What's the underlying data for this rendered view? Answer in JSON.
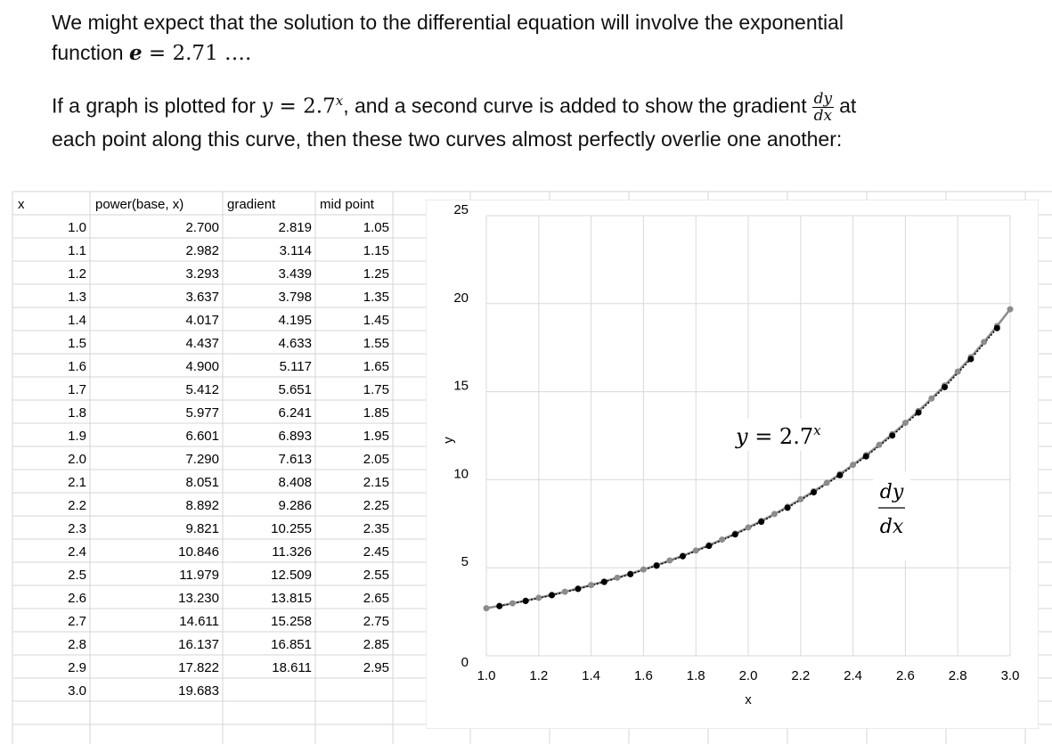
{
  "intro": {
    "line1": "We might expect that the solution to the differential equation will involve the exponential",
    "line2_prefix": "function ",
    "line2_e": "e",
    "line2_eq": " = 2.71 ….",
    "para2_a": "If a graph is plotted for ",
    "para2_y": "y",
    "para2_eq": " = 2.7",
    "para2_x": "x",
    "para2_b": ", and a second curve is added to show the gradient",
    "para2_frac_num": "dy",
    "para2_frac_den": "dx",
    "para2_c": "at",
    "para2_line2": "each point along this curve,  then these two curves almost perfectly overlie one another:"
  },
  "sheet": {
    "headers": [
      "x",
      "power(base, x)",
      "gradient",
      "mid point"
    ],
    "rows": [
      [
        "1.0",
        "2.700",
        "2.819",
        "1.05"
      ],
      [
        "1.1",
        "2.982",
        "3.114",
        "1.15"
      ],
      [
        "1.2",
        "3.293",
        "3.439",
        "1.25"
      ],
      [
        "1.3",
        "3.637",
        "3.798",
        "1.35"
      ],
      [
        "1.4",
        "4.017",
        "4.195",
        "1.45"
      ],
      [
        "1.5",
        "4.437",
        "4.633",
        "1.55"
      ],
      [
        "1.6",
        "4.900",
        "5.117",
        "1.65"
      ],
      [
        "1.7",
        "5.412",
        "5.651",
        "1.75"
      ],
      [
        "1.8",
        "5.977",
        "6.241",
        "1.85"
      ],
      [
        "1.9",
        "6.601",
        "6.893",
        "1.95"
      ],
      [
        "2.0",
        "7.290",
        "7.613",
        "2.05"
      ],
      [
        "2.1",
        "8.051",
        "8.408",
        "2.15"
      ],
      [
        "2.2",
        "8.892",
        "9.286",
        "2.25"
      ],
      [
        "2.3",
        "9.821",
        "10.255",
        "2.35"
      ],
      [
        "2.4",
        "10.846",
        "11.326",
        "2.45"
      ],
      [
        "2.5",
        "11.979",
        "12.509",
        "2.55"
      ],
      [
        "2.6",
        "13.230",
        "13.815",
        "2.65"
      ],
      [
        "2.7",
        "14.611",
        "15.258",
        "2.75"
      ],
      [
        "2.8",
        "16.137",
        "16.851",
        "2.85"
      ],
      [
        "2.9",
        "17.822",
        "18.611",
        "2.95"
      ],
      [
        "3.0",
        "19.683",
        "",
        ""
      ]
    ]
  },
  "chart_data": {
    "type": "scatter",
    "xlabel": "x",
    "ylabel": "y",
    "xlim": [
      1.0,
      3.0
    ],
    "ylim": [
      0,
      25
    ],
    "x_ticks": [
      "1.0",
      "1.2",
      "1.4",
      "1.6",
      "1.8",
      "2.0",
      "2.2",
      "2.4",
      "2.6",
      "2.8",
      "3.0"
    ],
    "y_ticks": [
      "0",
      "5",
      "10",
      "15",
      "20",
      "25"
    ],
    "grid": true,
    "series": [
      {
        "name": "y = 2.7^x",
        "color": "#8c8c8c",
        "x": [
          1.0,
          1.05,
          1.1,
          1.15,
          1.2,
          1.25,
          1.3,
          1.35,
          1.4,
          1.45,
          1.5,
          1.55,
          1.6,
          1.65,
          1.7,
          1.75,
          1.8,
          1.85,
          1.9,
          1.95,
          2.0,
          2.05,
          2.1,
          2.15,
          2.2,
          2.25,
          2.3,
          2.35,
          2.4,
          2.45,
          2.5,
          2.55,
          2.6,
          2.65,
          2.7,
          2.75,
          2.8,
          2.85,
          2.9,
          2.95,
          3.0
        ],
        "y": [
          2.7,
          2.838,
          2.982,
          3.134,
          3.293,
          3.461,
          3.637,
          3.822,
          4.017,
          4.221,
          4.437,
          4.662,
          4.9,
          5.149,
          5.412,
          5.687,
          5.977,
          6.281,
          6.601,
          6.937,
          7.29,
          7.661,
          8.051,
          8.461,
          8.892,
          9.344,
          9.821,
          10.32,
          10.846,
          11.398,
          11.979,
          12.588,
          13.23,
          13.903,
          14.611,
          15.355,
          16.137,
          16.958,
          17.822,
          18.729,
          19.683
        ]
      },
      {
        "name": "dy/dx",
        "color": "#000000",
        "x": [
          1.05,
          1.15,
          1.25,
          1.35,
          1.45,
          1.55,
          1.65,
          1.75,
          1.85,
          1.95,
          2.05,
          2.15,
          2.25,
          2.35,
          2.45,
          2.55,
          2.65,
          2.75,
          2.85,
          2.95
        ],
        "y": [
          2.819,
          3.114,
          3.439,
          3.798,
          4.195,
          4.633,
          5.117,
          5.651,
          6.241,
          6.893,
          7.613,
          8.408,
          9.286,
          10.255,
          11.326,
          12.509,
          13.815,
          15.258,
          16.851,
          18.611
        ]
      }
    ],
    "annotations": [
      {
        "text_a": "y",
        "text_b": " = 2.7",
        "text_sup": "x"
      },
      {
        "num": "dy",
        "den": "dx"
      }
    ]
  }
}
